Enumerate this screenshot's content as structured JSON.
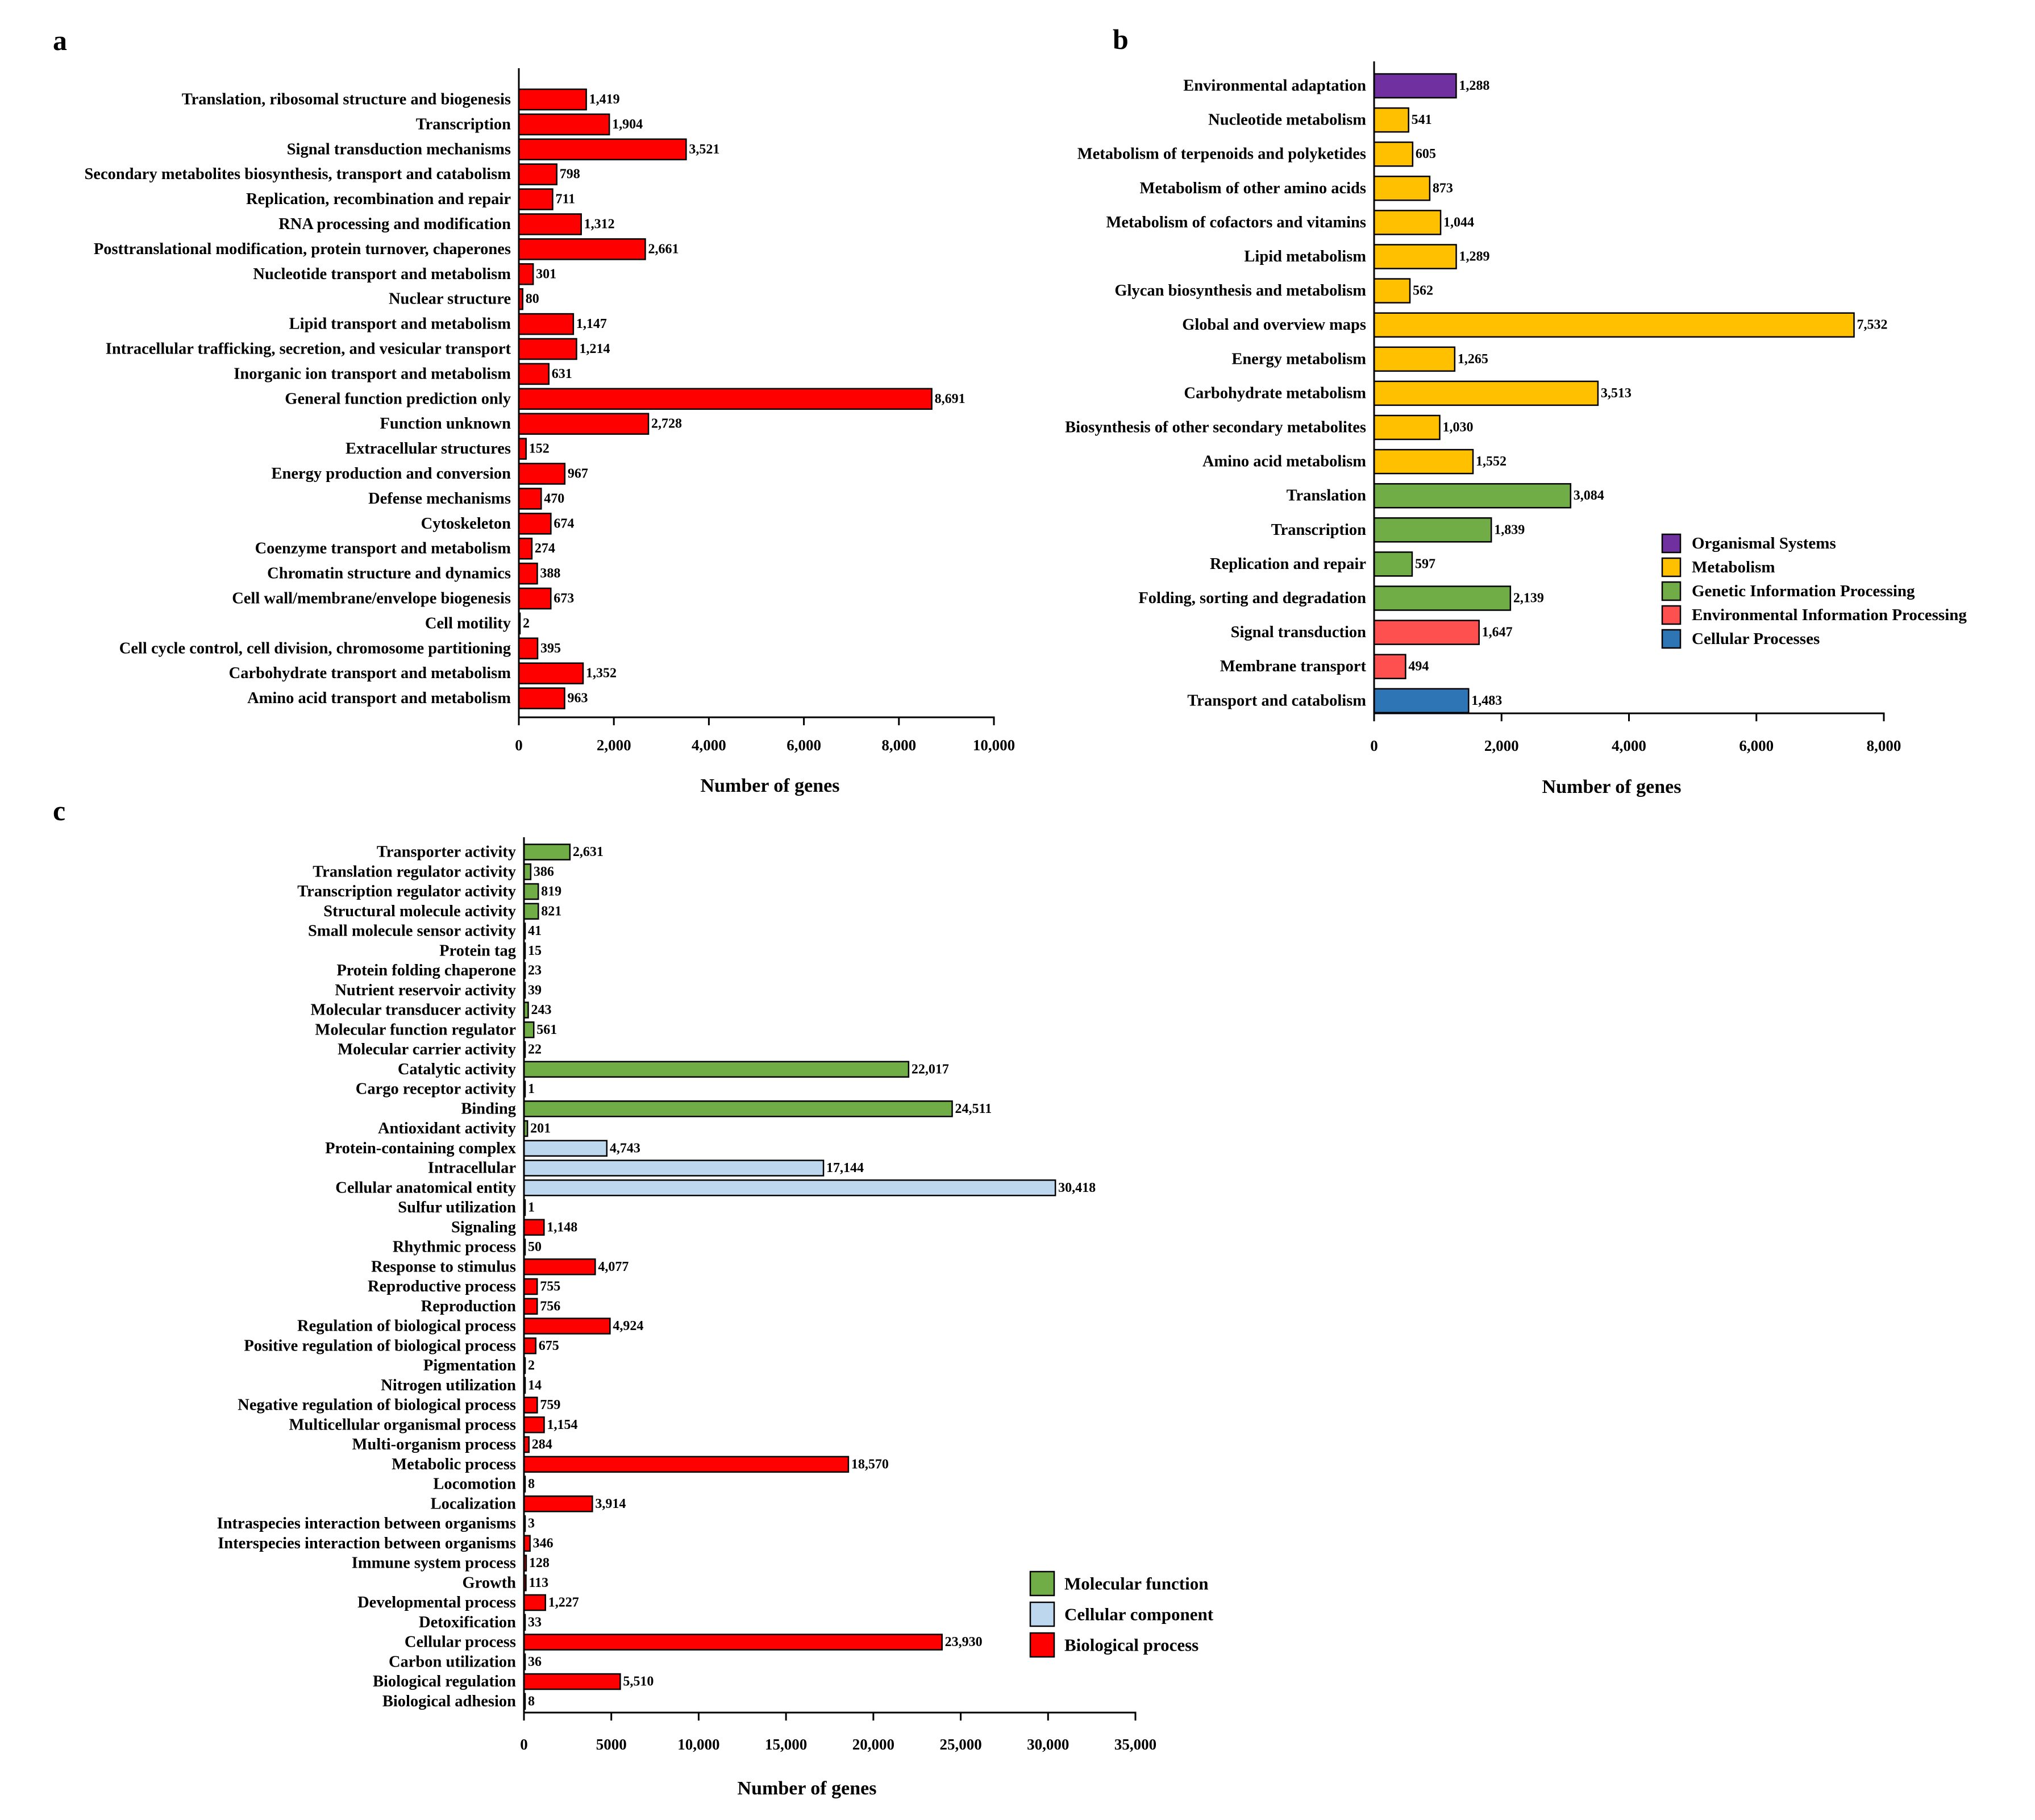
{
  "colors": {
    "cog": "#ff0000",
    "organismal_systems": "#7030a0",
    "metabolism": "#ffc000",
    "genetic_information_processing": "#70ad47",
    "environmental_information_processing": "#ff5050",
    "cellular_processes": "#2e75b6",
    "molecular_function": "#70ad47",
    "cellular_component": "#bdd7ee",
    "biological_process": "#ff0000"
  },
  "chart_data": [
    {
      "id": "a",
      "panel_label": "a",
      "type": "bar",
      "orientation": "horizontal",
      "xlabel": "Number of genes",
      "xlim": [
        0,
        10000
      ],
      "xticks": [
        0,
        2000,
        4000,
        6000,
        8000,
        10000
      ],
      "xtick_labels": [
        "0",
        "2,000",
        "4,000",
        "6,000",
        "8,000",
        "10,000"
      ],
      "categories": [
        "Translation, ribosomal structure and biogenesis",
        "Transcription",
        "Signal transduction mechanisms",
        "Secondary metabolites biosynthesis, transport and catabolism",
        "Replication, recombination and repair",
        "RNA processing and modification",
        "Posttranslational modification, protein turnover, chaperones",
        "Nucleotide transport and metabolism",
        "Nuclear structure",
        "Lipid transport and metabolism",
        "Intracellular trafficking, secretion, and vesicular transport",
        "Inorganic ion transport and metabolism",
        "General function prediction only",
        "Function unknown",
        "Extracellular structures",
        "Energy production and conversion",
        "Defense mechanisms",
        "Cytoskeleton",
        "Coenzyme transport and metabolism",
        "Chromatin structure and dynamics",
        "Cell wall/membrane/envelope biogenesis",
        "Cell motility",
        "Cell cycle control, cell division, chromosome partitioning",
        "Carbohydrate transport and metabolism",
        "Amino acid transport and metabolism"
      ],
      "values": [
        1419,
        1904,
        3521,
        798,
        711,
        1312,
        2661,
        301,
        80,
        1147,
        1214,
        631,
        8691,
        2728,
        152,
        967,
        470,
        674,
        274,
        388,
        673,
        2,
        395,
        1352,
        963
      ],
      "value_labels": [
        "1,419",
        "1,904",
        "3,521",
        "798",
        "711",
        "1,312",
        "2,661",
        "301",
        "80",
        "1,147",
        "1,214",
        "631",
        "8,691",
        "2,728",
        "152",
        "967",
        "470",
        "674",
        "274",
        "388",
        "673",
        "2",
        "395",
        "1,352",
        "963"
      ],
      "groups": [
        "cog",
        "cog",
        "cog",
        "cog",
        "cog",
        "cog",
        "cog",
        "cog",
        "cog",
        "cog",
        "cog",
        "cog",
        "cog",
        "cog",
        "cog",
        "cog",
        "cog",
        "cog",
        "cog",
        "cog",
        "cog",
        "cog",
        "cog",
        "cog",
        "cog"
      ],
      "legend": []
    },
    {
      "id": "b",
      "panel_label": "b",
      "type": "bar",
      "orientation": "horizontal",
      "xlabel": "Number of genes",
      "xlim": [
        0,
        8000
      ],
      "xticks": [
        0,
        2000,
        4000,
        6000,
        8000
      ],
      "xtick_labels": [
        "0",
        "2,000",
        "4,000",
        "6,000",
        "8,000"
      ],
      "categories": [
        "Environmental adaptation",
        "Nucleotide metabolism",
        "Metabolism of terpenoids and polyketides",
        "Metabolism of other amino acids",
        "Metabolism of cofactors and vitamins",
        "Lipid metabolism",
        "Glycan biosynthesis and metabolism",
        "Global and overview maps",
        "Energy metabolism",
        "Carbohydrate metabolism",
        "Biosynthesis of other secondary metabolites",
        "Amino acid metabolism",
        "Translation",
        "Transcription",
        "Replication and repair",
        "Folding, sorting and degradation",
        "Signal transduction",
        "Membrane transport",
        "Transport and catabolism"
      ],
      "values": [
        1288,
        541,
        605,
        873,
        1044,
        1289,
        562,
        7532,
        1265,
        3513,
        1030,
        1552,
        3084,
        1839,
        597,
        2139,
        1647,
        494,
        1483
      ],
      "value_labels": [
        "1,288",
        "541",
        "605",
        "873",
        "1,044",
        "1,289",
        "562",
        "7,532",
        "1,265",
        "3,513",
        "1,030",
        "1,552",
        "3,084",
        "1,839",
        "597",
        "2,139",
        "1,647",
        "494",
        "1,483"
      ],
      "groups": [
        "organismal_systems",
        "metabolism",
        "metabolism",
        "metabolism",
        "metabolism",
        "metabolism",
        "metabolism",
        "metabolism",
        "metabolism",
        "metabolism",
        "metabolism",
        "metabolism",
        "genetic_information_processing",
        "genetic_information_processing",
        "genetic_information_processing",
        "genetic_information_processing",
        "environmental_information_processing",
        "environmental_information_processing",
        "cellular_processes"
      ],
      "legend": [
        {
          "group": "organismal_systems",
          "label": "Organismal Systems"
        },
        {
          "group": "metabolism",
          "label": "Metabolism"
        },
        {
          "group": "genetic_information_processing",
          "label": "Genetic Information Processing"
        },
        {
          "group": "environmental_information_processing",
          "label": "Environmental Information Processing"
        },
        {
          "group": "cellular_processes",
          "label": "Cellular Processes"
        }
      ]
    },
    {
      "id": "c",
      "panel_label": "c",
      "type": "bar",
      "orientation": "horizontal",
      "xlabel": "Number of genes",
      "xlim": [
        0,
        35000
      ],
      "xticks": [
        0,
        5000,
        10000,
        15000,
        20000,
        25000,
        30000,
        35000
      ],
      "xtick_labels": [
        "0",
        "5000",
        "10,000",
        "15,000",
        "20,000",
        "25,000",
        "30,000",
        "35,000"
      ],
      "categories": [
        "Transporter activity",
        "Translation regulator activity",
        "Transcription regulator activity",
        "Structural molecule activity",
        "Small molecule sensor activity",
        "Protein tag",
        "Protein folding chaperone",
        "Nutrient reservoir activity",
        "Molecular transducer activity",
        "Molecular function regulator",
        "Molecular carrier activity",
        "Catalytic activity",
        "Cargo receptor activity",
        "Binding",
        "Antioxidant activity",
        "Protein-containing complex",
        "Intracellular",
        "Cellular anatomical entity",
        "Sulfur utilization",
        "Signaling",
        "Rhythmic process",
        "Response to stimulus",
        "Reproductive process",
        "Reproduction",
        "Regulation of biological process",
        "Positive regulation of biological process",
        "Pigmentation",
        "Nitrogen utilization",
        "Negative regulation of biological process",
        "Multicellular organismal process",
        "Multi-organism process",
        "Metabolic process",
        "Locomotion",
        "Localization",
        "Intraspecies interaction between organisms",
        "Interspecies interaction between organisms",
        "Immune system process",
        "Growth",
        "Developmental process",
        "Detoxification",
        "Cellular process",
        "Carbon utilization",
        "Biological regulation",
        "Biological adhesion"
      ],
      "values": [
        2631,
        386,
        819,
        821,
        41,
        15,
        23,
        39,
        243,
        561,
        22,
        22017,
        1,
        24511,
        201,
        4743,
        17144,
        30418,
        1,
        1148,
        50,
        4077,
        755,
        756,
        4924,
        675,
        2,
        14,
        759,
        1154,
        284,
        18570,
        8,
        3914,
        3,
        346,
        128,
        113,
        1227,
        33,
        23930,
        36,
        5510,
        8
      ],
      "value_labels": [
        "2,631",
        "386",
        "819",
        "821",
        "41",
        "15",
        "23",
        "39",
        "243",
        "561",
        "22",
        "22,017",
        "1",
        "24,511",
        "201",
        "4,743",
        "17,144",
        "30,418",
        "1",
        "1,148",
        "50",
        "4,077",
        "755",
        "756",
        "4,924",
        "675",
        "2",
        "14",
        "759",
        "1,154",
        "284",
        "18,570",
        "8",
        "3,914",
        "3",
        "346",
        "128",
        "113",
        "1,227",
        "33",
        "23,930",
        "36",
        "5,510",
        "8"
      ],
      "groups": [
        "molecular_function",
        "molecular_function",
        "molecular_function",
        "molecular_function",
        "molecular_function",
        "molecular_function",
        "molecular_function",
        "molecular_function",
        "molecular_function",
        "molecular_function",
        "molecular_function",
        "molecular_function",
        "molecular_function",
        "molecular_function",
        "molecular_function",
        "cellular_component",
        "cellular_component",
        "cellular_component",
        "biological_process",
        "biological_process",
        "biological_process",
        "biological_process",
        "biological_process",
        "biological_process",
        "biological_process",
        "biological_process",
        "biological_process",
        "biological_process",
        "biological_process",
        "biological_process",
        "biological_process",
        "biological_process",
        "biological_process",
        "biological_process",
        "biological_process",
        "biological_process",
        "biological_process",
        "biological_process",
        "biological_process",
        "biological_process",
        "biological_process",
        "biological_process",
        "biological_process",
        "biological_process"
      ],
      "legend": [
        {
          "group": "molecular_function",
          "label": "Molecular function"
        },
        {
          "group": "cellular_component",
          "label": "Cellular component"
        },
        {
          "group": "biological_process",
          "label": "Biological process"
        }
      ]
    }
  ]
}
